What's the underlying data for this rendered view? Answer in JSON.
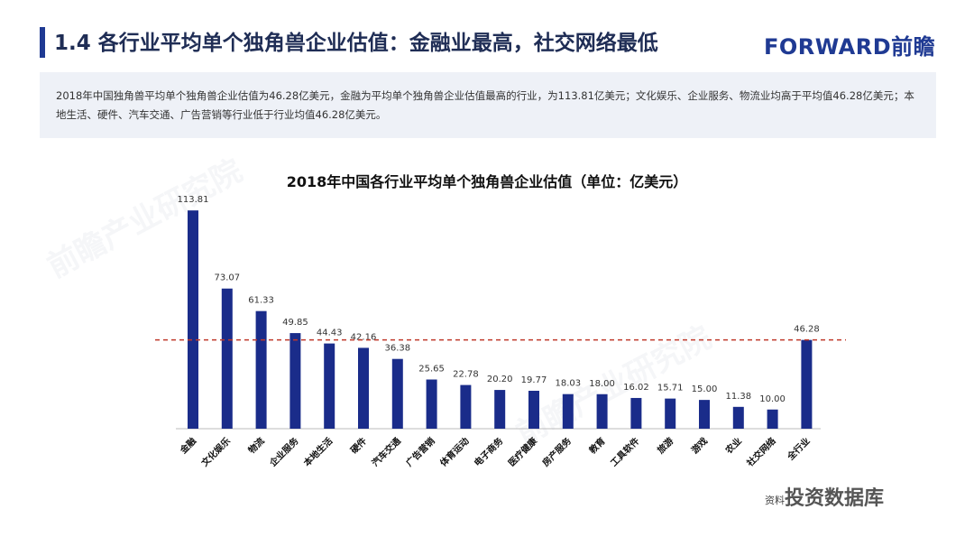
{
  "header": {
    "title": "1.4 各行业平均单个独角兽企业估值：金融业最高，社交网络最低",
    "logo": "FORWARD前瞻"
  },
  "summary": {
    "text": "2018年中国独角兽平均单个独角兽企业估值为46.28亿美元，金融为平均单个独角兽企业估值最高的行业，为113.81亿美元；文化娱乐、企业服务、物流业均高于平均值46.28亿美元；本地生活、硬件、汽车交通、广告营销等行业低于行业均值46.28亿美元。"
  },
  "watermarks": [
    "前瞻产业研究院",
    "前瞻产业研究院"
  ],
  "footer": {
    "source_prefix": "资料",
    "watermark": "投资数据库"
  },
  "chart_data": {
    "type": "bar",
    "title": "2018年中国各行业平均单个独角兽企业估值（单位：亿美元）",
    "categories": [
      "金融",
      "文化娱乐",
      "物流",
      "企业服务",
      "本地生活",
      "硬件",
      "汽车交通",
      "广告营销",
      "体育运动",
      "电子商务",
      "医疗健康",
      "房产服务",
      "教育",
      "工具软件",
      "旅游",
      "游戏",
      "农业",
      "社交网络",
      "全行业"
    ],
    "values": [
      113.81,
      73.07,
      61.33,
      49.85,
      44.43,
      42.16,
      36.38,
      25.65,
      22.78,
      20.2,
      19.77,
      18.03,
      18.0,
      16.02,
      15.71,
      15.0,
      11.38,
      10.0,
      46.28
    ],
    "value_labels": [
      "113.81",
      "73.07",
      "61.33",
      "49.85",
      "44.43",
      "42.16",
      "36.38",
      "25.65",
      "22.78",
      "20.20",
      "19.77",
      "18.03",
      "18.00",
      "16.02",
      "15.71",
      "15.00",
      "11.38",
      "10.00",
      "46.28"
    ],
    "reference_line": 46.28,
    "ylim": [
      0,
      120
    ],
    "colors": {
      "bar": "#1a2c8a",
      "reference": "#c0392b"
    }
  }
}
